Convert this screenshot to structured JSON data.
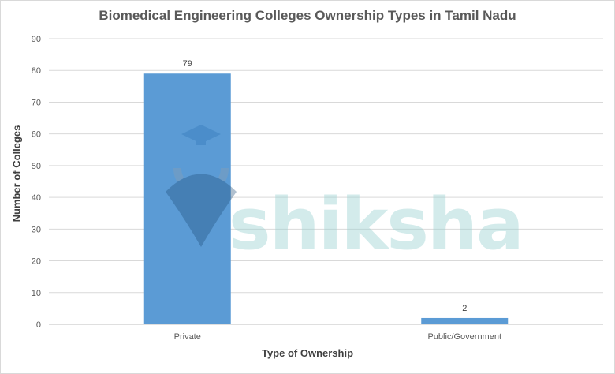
{
  "chart_data": {
    "type": "bar",
    "title": "Biomedical Engineering Colleges Ownership Types in Tamil Nadu",
    "xlabel": "Type of Ownership",
    "ylabel": "Number of Colleges",
    "categories": [
      "Private",
      "Public/Government"
    ],
    "values": [
      79,
      2
    ],
    "data_labels": [
      "79",
      "2"
    ],
    "ylim": [
      0,
      90
    ],
    "yticks": [
      0,
      10,
      20,
      30,
      40,
      50,
      60,
      70,
      80,
      90
    ],
    "grid": true,
    "legend": "none",
    "bar_color": "#5b9bd5"
  },
  "watermark": {
    "text": "shiksha"
  }
}
